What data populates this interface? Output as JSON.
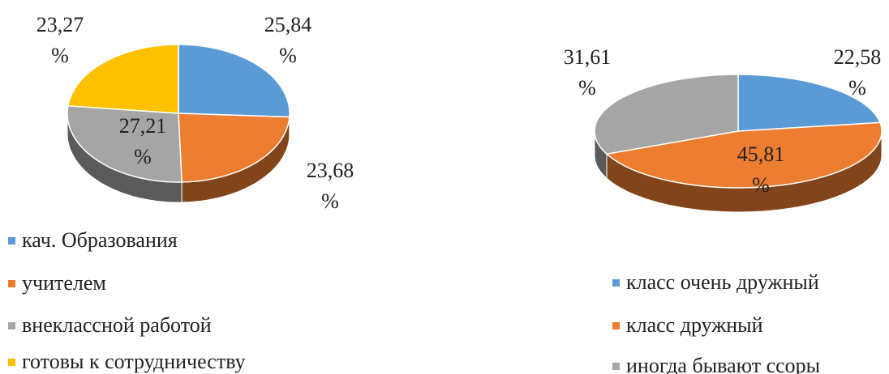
{
  "chart_data": [
    {
      "type": "pie",
      "categories": [
        "кач. Образования",
        "учителем",
        "внеклассной работой",
        "готовы к сотрудничеству"
      ],
      "values": [
        25.84,
        23.68,
        27.21,
        23.27
      ],
      "value_labels": [
        "25,84 %",
        "23,68 %",
        "27,21 %",
        "23,27 %"
      ],
      "colors": [
        "#5b9bd5",
        "#ed7d31",
        "#a5a5a5",
        "#ffc000"
      ]
    },
    {
      "type": "pie",
      "categories": [
        "класс очень дружный",
        "класс дружный",
        "иногда бывают ссоры"
      ],
      "values": [
        22.58,
        45.81,
        31.61
      ],
      "value_labels": [
        "22,58 %",
        "45,81 %",
        "31,61 %"
      ],
      "colors": [
        "#5b9bd5",
        "#ed7d31",
        "#a5a5a5"
      ]
    }
  ]
}
